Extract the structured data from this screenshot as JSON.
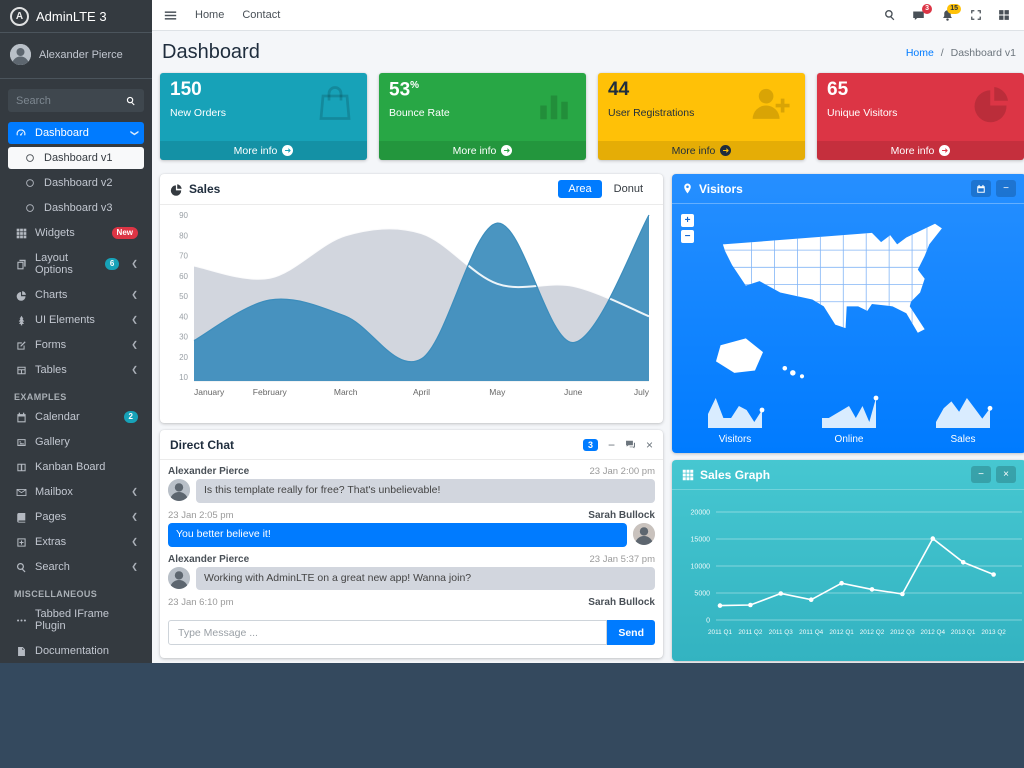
{
  "app": {
    "brand": "AdminLTE 3",
    "user": "Alexander Pierce",
    "search_placeholder": "Search"
  },
  "navbar": {
    "links": [
      {
        "label": "Home"
      },
      {
        "label": "Contact"
      }
    ],
    "messages_badge": "3",
    "notifications_badge": "15"
  },
  "page": {
    "title": "Dashboard",
    "breadcrumb_home": "Home",
    "breadcrumb_sep": "/",
    "breadcrumb_current": "Dashboard v1"
  },
  "sidebar": {
    "items": [
      {
        "type": "item",
        "icon": "tachometer-icon",
        "label": "Dashboard",
        "active": true,
        "chevron": "down"
      },
      {
        "type": "sub",
        "icon": "circle-icon",
        "label": "Dashboard v1",
        "active": true
      },
      {
        "type": "sub",
        "icon": "circle-icon",
        "label": "Dashboard v2"
      },
      {
        "type": "sub",
        "icon": "circle-icon",
        "label": "Dashboard v3"
      },
      {
        "type": "item",
        "icon": "th-icon",
        "label": "Widgets",
        "badge": "New",
        "badge_color": "danger"
      },
      {
        "type": "item",
        "icon": "copy-icon",
        "label": "Layout Options",
        "badge": "6",
        "badge_color": "info",
        "chevron": "left"
      },
      {
        "type": "item",
        "icon": "pie-icon",
        "label": "Charts",
        "chevron": "left"
      },
      {
        "type": "item",
        "icon": "tree-icon",
        "label": "UI Elements",
        "chevron": "left"
      },
      {
        "type": "item",
        "icon": "edit-icon",
        "label": "Forms",
        "chevron": "left"
      },
      {
        "type": "item",
        "icon": "table-icon",
        "label": "Tables",
        "chevron": "left"
      },
      {
        "type": "header",
        "label": "EXAMPLES"
      },
      {
        "type": "item",
        "icon": "calendar-icon",
        "label": "Calendar",
        "badge": "2",
        "badge_color": "info"
      },
      {
        "type": "item",
        "icon": "image-icon",
        "label": "Gallery"
      },
      {
        "type": "item",
        "icon": "columns-icon",
        "label": "Kanban Board"
      },
      {
        "type": "item",
        "icon": "envelope-icon",
        "label": "Mailbox",
        "chevron": "left"
      },
      {
        "type": "item",
        "icon": "book-icon",
        "label": "Pages",
        "chevron": "left"
      },
      {
        "type": "item",
        "icon": "plus-square-icon",
        "label": "Extras",
        "chevron": "left"
      },
      {
        "type": "item",
        "icon": "search-icon",
        "label": "Search",
        "chevron": "left"
      },
      {
        "type": "header",
        "label": "MISCELLANEOUS"
      },
      {
        "type": "item",
        "icon": "ellipsis-icon",
        "label": "Tabbed IFrame Plugin"
      },
      {
        "type": "item",
        "icon": "file-icon",
        "label": "Documentation"
      }
    ]
  },
  "small_boxes": [
    {
      "number": "150",
      "sup": "",
      "label": "New Orders",
      "color": "#17a2b8",
      "icon": "shopping-bag-icon",
      "more": "More info",
      "text": "light"
    },
    {
      "number": "53",
      "sup": "%",
      "label": "Bounce Rate",
      "color": "#28a745",
      "icon": "bar-chart-icon",
      "more": "More info",
      "text": "light"
    },
    {
      "number": "44",
      "sup": "",
      "label": "User Registrations",
      "color": "#ffc107",
      "icon": "user-plus-icon",
      "more": "More info",
      "text": "dark"
    },
    {
      "number": "65",
      "sup": "",
      "label": "Unique Visitors",
      "color": "#dc3545",
      "icon": "pie-icon",
      "more": "More info",
      "text": "light"
    }
  ],
  "sales_card": {
    "title": "Sales",
    "tab_area": "Area",
    "tab_donut": "Donut"
  },
  "chat": {
    "title": "Direct Chat",
    "badge": "3",
    "messages": [
      {
        "side": "left",
        "name": "Alexander Pierce",
        "time": "23 Jan 2:00 pm",
        "text": "Is this template really for free? That's unbelievable!"
      },
      {
        "side": "right",
        "name": "Sarah Bullock",
        "time": "23 Jan 2:05 pm",
        "text": "You better believe it!"
      },
      {
        "side": "left",
        "name": "Alexander Pierce",
        "time": "23 Jan 5:37 pm",
        "text": "Working with AdminLTE on a great new app! Wanna join?"
      },
      {
        "side": "right",
        "name": "Sarah Bullock",
        "time": "23 Jan 6:10 pm",
        "text": ""
      }
    ],
    "input_placeholder": "Type Message ...",
    "send_label": "Send"
  },
  "visitors_card": {
    "title": "Visitors",
    "stats": [
      {
        "label": "Visitors"
      },
      {
        "label": "Online"
      },
      {
        "label": "Sales"
      }
    ]
  },
  "sales_graph_card": {
    "title": "Sales Graph"
  },
  "colors": {
    "primary": "#007bff",
    "info": "#17a2b8",
    "success": "#28a745",
    "warning": "#ffc107",
    "danger": "#dc3545",
    "chart_blue": "#3c8dbc",
    "chart_gray": "#d2d6de",
    "sidebar_bg": "#343a40",
    "body_bg": "#34495e",
    "teal": "#39cccc"
  },
  "chart_data": [
    {
      "id": "sales-area-chart",
      "type": "area",
      "title": "Sales",
      "x": [
        "January",
        "February",
        "March",
        "April",
        "May",
        "June",
        "July"
      ],
      "ylim": [
        10,
        90
      ],
      "yticks": [
        90,
        80,
        70,
        60,
        50,
        40,
        30,
        20,
        10
      ],
      "grid": false,
      "series": [
        {
          "name": "electronics-gray",
          "color": "#d2d6de",
          "values": [
            65,
            59,
            80,
            81,
            56,
            55,
            40
          ]
        },
        {
          "name": "digital-goods-blue",
          "color": "#3c8dbc",
          "values": [
            28,
            48,
            40,
            19,
            86,
            27,
            90
          ]
        }
      ]
    },
    {
      "id": "sales-graph-chart",
      "type": "line",
      "title": "Sales Graph",
      "categories": [
        "2011 Q1",
        "2011 Q2",
        "2011 Q3",
        "2011 Q4",
        "2012 Q1",
        "2012 Q2",
        "2012 Q3",
        "2012 Q4",
        "2013 Q1",
        "2013 Q2"
      ],
      "values": [
        2666,
        2778,
        4912,
        3767,
        6810,
        5670,
        4820,
        15073,
        10687,
        8432
      ],
      "ylim": [
        0,
        20000
      ],
      "yticks": [
        20000,
        15000,
        10000,
        5000,
        0
      ],
      "grid": true,
      "line_color": "#ffffff"
    },
    {
      "id": "spark-visitors",
      "type": "sparkline",
      "label": "Visitors",
      "values": [
        4,
        8,
        3,
        3,
        6,
        5,
        2,
        5
      ]
    },
    {
      "id": "spark-online",
      "type": "sparkline",
      "label": "Online",
      "values": [
        3,
        3,
        4,
        5,
        6,
        3,
        6,
        2,
        8
      ]
    },
    {
      "id": "spark-sales",
      "type": "sparkline",
      "label": "Sales",
      "values": [
        2,
        6,
        8,
        5,
        9,
        6,
        3,
        6
      ]
    }
  ]
}
